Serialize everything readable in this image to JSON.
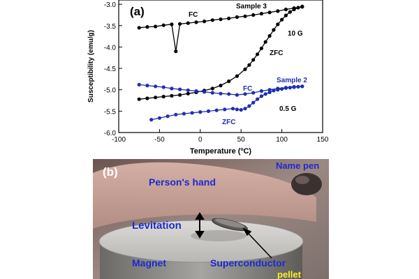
{
  "chart_data": {
    "type": "scatter",
    "panel_label": "(a)",
    "xlabel": "Temperature (ºC)",
    "ylabel": "Susceptibility (emu/g)",
    "xlim": [
      -100,
      150
    ],
    "ylim": [
      -6.0,
      -2.9
    ],
    "x_ticks": [
      -100,
      -50,
      0,
      50,
      100,
      150
    ],
    "y_ticks": [
      -3.0,
      -3.5,
      -4.0,
      -4.5,
      -5.0,
      -5.5,
      -6.0
    ],
    "grid": false,
    "annotations": [
      "Sample 3",
      "FC",
      "10 G",
      "ZFC",
      "Sample 2",
      "FC",
      "0.5 G",
      "ZFC"
    ],
    "series": [
      {
        "name": "Sample 3 FC",
        "color": "#000000",
        "x": [
          -75,
          -65,
          -55,
          -45,
          -35,
          -30,
          -25,
          -15,
          -5,
          5,
          15,
          25,
          35,
          45,
          55,
          65,
          75,
          85,
          95,
          105,
          115,
          125
        ],
        "y": [
          -3.55,
          -3.53,
          -3.52,
          -3.49,
          -3.47,
          -4.1,
          -3.46,
          -3.44,
          -3.42,
          -3.4,
          -3.37,
          -3.35,
          -3.33,
          -3.3,
          -3.28,
          -3.25,
          -3.22,
          -3.19,
          -3.16,
          -3.12,
          -3.09,
          -3.06
        ]
      },
      {
        "name": "Sample 3 ZFC",
        "color": "#000000",
        "x": [
          -75,
          -65,
          -55,
          -45,
          -35,
          -25,
          -15,
          -5,
          5,
          15,
          25,
          35,
          45,
          55,
          60,
          65,
          70,
          75,
          80,
          85,
          90,
          95,
          100,
          105,
          110,
          115,
          120,
          125
        ],
        "y": [
          -5.22,
          -5.2,
          -5.18,
          -5.16,
          -5.14,
          -5.12,
          -5.09,
          -5.06,
          -5.02,
          -4.97,
          -4.9,
          -4.8,
          -4.68,
          -4.52,
          -4.42,
          -4.3,
          -4.17,
          -4.03,
          -3.88,
          -3.74,
          -3.6,
          -3.47,
          -3.36,
          -3.26,
          -3.18,
          -3.12,
          -3.08,
          -3.05
        ]
      },
      {
        "name": "Sample 2 FC",
        "color": "#1f2fb0",
        "x": [
          -75,
          -65,
          -55,
          -45,
          -35,
          -25,
          -15,
          -5,
          5,
          15,
          25,
          35,
          45,
          55,
          65,
          75,
          85,
          95,
          105,
          115,
          125
        ],
        "y": [
          -4.88,
          -4.9,
          -4.92,
          -4.94,
          -4.97,
          -4.99,
          -5.01,
          -5.03,
          -5.05,
          -5.07,
          -5.09,
          -5.1,
          -5.12,
          -5.1,
          -5.07,
          -5.03,
          -5.0,
          -4.97,
          -4.95,
          -4.93,
          -4.92
        ]
      },
      {
        "name": "Sample 2 ZFC",
        "color": "#1f2fb0",
        "x": [
          -60,
          -50,
          -40,
          -30,
          -20,
          -10,
          0,
          10,
          20,
          30,
          40,
          45,
          50,
          55,
          60,
          65,
          70,
          75,
          80,
          85,
          90,
          95,
          100,
          105,
          110,
          115,
          120,
          125
        ],
        "y": [
          -5.7,
          -5.66,
          -5.62,
          -5.58,
          -5.56,
          -5.54,
          -5.52,
          -5.5,
          -5.48,
          -5.46,
          -5.44,
          -5.46,
          -5.47,
          -5.44,
          -5.38,
          -5.3,
          -5.22,
          -5.15,
          -5.1,
          -5.06,
          -5.02,
          -5.0,
          -4.98,
          -4.96,
          -4.95,
          -4.94,
          -4.93,
          -4.92
        ]
      }
    ]
  },
  "photo": {
    "panel_label": "(b)",
    "labels": {
      "hand": "Person's hand",
      "pen": "Name pen",
      "levitation": "Levitation",
      "magnet": "Magnet",
      "superconductor": "Superconductor",
      "pellet": "pellet"
    },
    "colors": {
      "blue_text": "#1a2bd0",
      "white_text": "#ffffff",
      "yellow_text": "#ffee22"
    }
  }
}
